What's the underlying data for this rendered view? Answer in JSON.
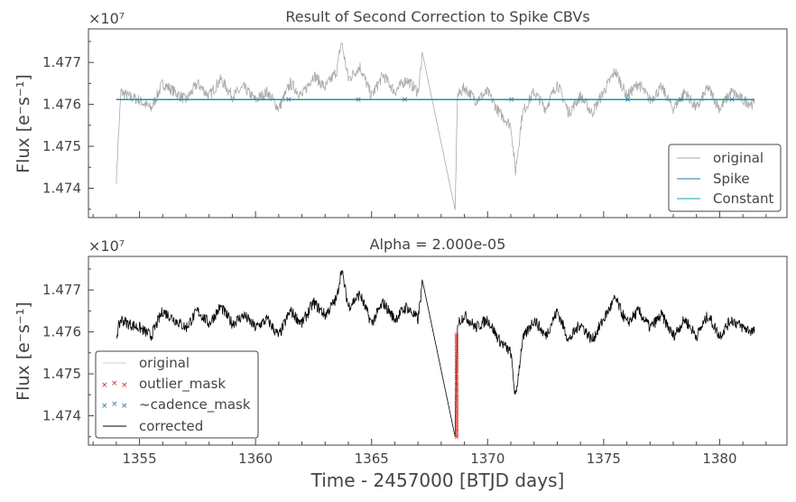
{
  "chart_data": [
    {
      "type": "line",
      "title": "Result of Second Correction to Spike CBVs",
      "ylabel": "Flux [e⁻s⁻¹]",
      "xlabel": "",
      "y_multiplier": "×10⁷",
      "xlim": [
        1352.8,
        1382.9
      ],
      "ylim": [
        1.4733,
        1.4778
      ],
      "yticks": [
        1.474,
        1.475,
        1.476,
        1.477
      ],
      "ytick_labels": [
        "1.474",
        "1.475",
        "1.476",
        "1.477"
      ],
      "legend_position": "lower-right",
      "legend": [
        "original",
        "Spike",
        "Constant"
      ],
      "series": [
        {
          "name": "original",
          "color": "#aaaaaa",
          "x": [
            1354.0,
            1354.2,
            1354.5,
            1355.0,
            1355.5,
            1356.0,
            1356.5,
            1357.0,
            1357.5,
            1358.0,
            1358.5,
            1359.0,
            1359.5,
            1360.0,
            1360.5,
            1361.0,
            1361.5,
            1362.0,
            1362.5,
            1363.0,
            1363.5,
            1363.7,
            1364.0,
            1364.5,
            1365.0,
            1365.5,
            1366.0,
            1366.5,
            1367.0,
            1367.2,
            1368.6,
            1368.7,
            1369.0,
            1369.5,
            1370.0,
            1370.5,
            1371.0,
            1371.2,
            1371.5,
            1372.0,
            1372.5,
            1373.0,
            1373.5,
            1374.0,
            1374.5,
            1375.0,
            1375.5,
            1376.0,
            1376.5,
            1377.0,
            1377.5,
            1378.0,
            1378.5,
            1379.0,
            1379.5,
            1380.0,
            1380.5,
            1381.0,
            1381.5
          ],
          "y": [
            1.47425,
            1.4763,
            1.4762,
            1.4761,
            1.4759,
            1.4765,
            1.4763,
            1.4761,
            1.4765,
            1.4762,
            1.4766,
            1.4762,
            1.4764,
            1.4761,
            1.4763,
            1.4759,
            1.4765,
            1.4762,
            1.4767,
            1.4764,
            1.4768,
            1.4775,
            1.4766,
            1.4769,
            1.4762,
            1.4767,
            1.4763,
            1.4766,
            1.4763,
            1.4772,
            1.47345,
            1.4762,
            1.4764,
            1.4761,
            1.4763,
            1.4758,
            1.4755,
            1.4744,
            1.4758,
            1.4763,
            1.4759,
            1.4765,
            1.4758,
            1.4762,
            1.4758,
            1.4763,
            1.4768,
            1.4762,
            1.4765,
            1.4761,
            1.4764,
            1.4759,
            1.4763,
            1.4759,
            1.4764,
            1.4759,
            1.4763,
            1.4761,
            1.476
          ]
        },
        {
          "name": "Spike",
          "color": "#1f77b4",
          "x": [
            1354.0,
            1381.5
          ],
          "y": [
            1.47611,
            1.47611
          ]
        },
        {
          "name": "Constant",
          "color": "#17a5a5",
          "x": [
            1354.0,
            1381.5
          ],
          "y": [
            1.47612,
            1.47612
          ]
        }
      ],
      "cadence_mask_x": [
        1361.4,
        1364.4,
        1366.4,
        1371.0,
        1376.0,
        1378.3,
        1380.5
      ]
    },
    {
      "type": "line",
      "title": "Alpha = 2.000e-05",
      "ylabel": "Flux [e⁻s⁻¹]",
      "xlabel": "Time - 2457000 [BTJD days]",
      "y_multiplier": "×10⁷",
      "xlim": [
        1352.8,
        1382.9
      ],
      "ylim": [
        1.4733,
        1.4778
      ],
      "xticks": [
        1355,
        1360,
        1365,
        1370,
        1375,
        1380
      ],
      "xtick_labels": [
        "1355",
        "1360",
        "1365",
        "1370",
        "1375",
        "1380"
      ],
      "yticks": [
        1.474,
        1.475,
        1.476,
        1.477
      ],
      "ytick_labels": [
        "1.474",
        "1.475",
        "1.476",
        "1.477"
      ],
      "legend_position": "lower-left",
      "legend": [
        "original",
        "outlier_mask",
        "~cadence_mask",
        "corrected"
      ],
      "series": [
        {
          "name": "corrected",
          "color": "#000000",
          "x": [
            1354.0,
            1354.2,
            1354.5,
            1355.0,
            1355.5,
            1356.0,
            1356.5,
            1357.0,
            1357.5,
            1358.0,
            1358.5,
            1359.0,
            1359.5,
            1360.0,
            1360.5,
            1361.0,
            1361.5,
            1362.0,
            1362.5,
            1363.0,
            1363.5,
            1363.7,
            1364.0,
            1364.5,
            1365.0,
            1365.5,
            1366.0,
            1366.5,
            1367.0,
            1367.2,
            1368.6,
            1368.7,
            1369.0,
            1369.5,
            1370.0,
            1370.5,
            1371.0,
            1371.2,
            1371.5,
            1372.0,
            1372.5,
            1373.0,
            1373.5,
            1374.0,
            1374.5,
            1375.0,
            1375.5,
            1376.0,
            1376.5,
            1377.0,
            1377.5,
            1378.0,
            1378.5,
            1379.0,
            1379.5,
            1380.0,
            1380.5,
            1381.0,
            1381.5
          ],
          "y": [
            1.4759,
            1.4763,
            1.4762,
            1.4761,
            1.4759,
            1.4765,
            1.4763,
            1.4761,
            1.4765,
            1.4762,
            1.4766,
            1.4762,
            1.4764,
            1.4761,
            1.4763,
            1.4759,
            1.4765,
            1.4762,
            1.4767,
            1.4764,
            1.4768,
            1.4775,
            1.4766,
            1.4769,
            1.4762,
            1.4767,
            1.4763,
            1.4766,
            1.4763,
            1.4772,
            1.47345,
            1.4762,
            1.4764,
            1.4761,
            1.4763,
            1.4758,
            1.4755,
            1.4744,
            1.4758,
            1.4763,
            1.4759,
            1.4765,
            1.4758,
            1.4762,
            1.4758,
            1.4763,
            1.4768,
            1.4762,
            1.4765,
            1.4761,
            1.4764,
            1.4759,
            1.4763,
            1.4759,
            1.4764,
            1.4759,
            1.4763,
            1.4761,
            1.476
          ]
        }
      ],
      "outlier_mask": {
        "color": "#d62728",
        "x": 1368.65,
        "y_range": [
          1.4735,
          1.476
        ]
      }
    }
  ],
  "legend_colors": {
    "original": "#aaaaaa",
    "spike": "#1f77b4",
    "constant": "#17a5a5",
    "outlier_mask": "#d62728",
    "cadence_mask": "#1f77b4",
    "corrected": "#000000"
  }
}
